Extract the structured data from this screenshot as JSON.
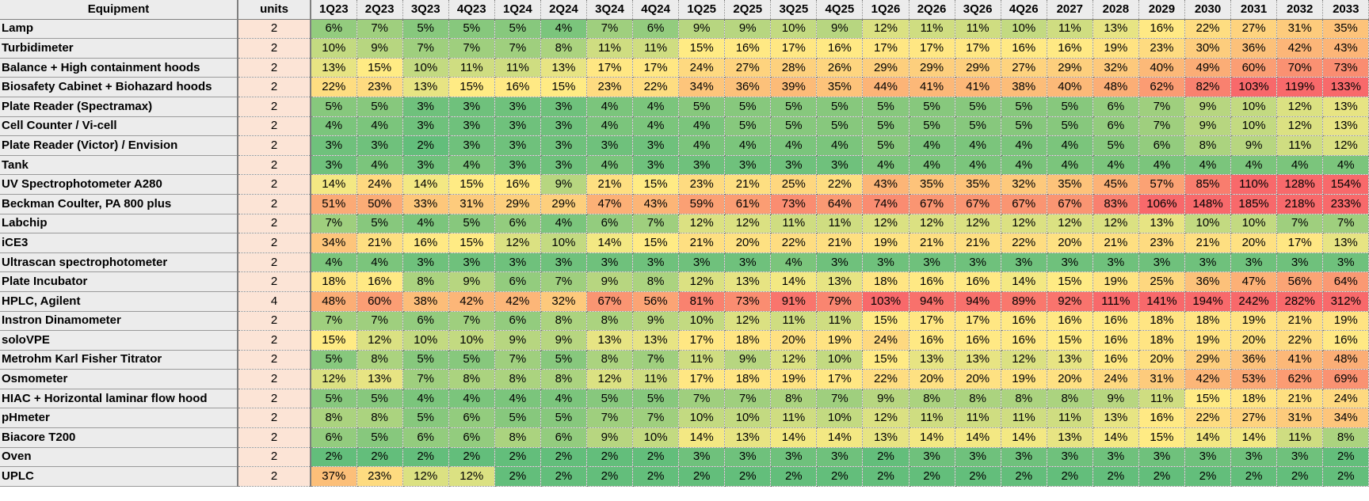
{
  "table": {
    "headers": [
      "Equipment",
      "units",
      "1Q23",
      "2Q23",
      "3Q23",
      "4Q23",
      "1Q24",
      "2Q24",
      "3Q24",
      "4Q24",
      "1Q25",
      "2Q25",
      "3Q25",
      "4Q25",
      "1Q26",
      "2Q26",
      "3Q26",
      "4Q26",
      "2027",
      "2028",
      "2029",
      "2030",
      "2031",
      "2032",
      "2033"
    ],
    "rows": [
      {
        "name": "Lamp",
        "units": "2",
        "values": [
          "6%",
          "7%",
          "5%",
          "5%",
          "5%",
          "4%",
          "7%",
          "6%",
          "9%",
          "9%",
          "10%",
          "9%",
          "12%",
          "11%",
          "11%",
          "10%",
          "11%",
          "13%",
          "16%",
          "22%",
          "27%",
          "31%",
          "35%"
        ]
      },
      {
        "name": "Turbidimeter",
        "units": "2",
        "values": [
          "10%",
          "9%",
          "7%",
          "7%",
          "7%",
          "8%",
          "11%",
          "11%",
          "15%",
          "16%",
          "17%",
          "16%",
          "17%",
          "17%",
          "17%",
          "16%",
          "16%",
          "19%",
          "23%",
          "30%",
          "36%",
          "42%",
          "43%"
        ]
      },
      {
        "name": "Balance + High containment hoods",
        "units": "2",
        "values": [
          "13%",
          "15%",
          "10%",
          "11%",
          "11%",
          "13%",
          "17%",
          "17%",
          "24%",
          "27%",
          "28%",
          "26%",
          "29%",
          "29%",
          "29%",
          "27%",
          "29%",
          "32%",
          "40%",
          "49%",
          "60%",
          "70%",
          "73%"
        ]
      },
      {
        "name": "Biosafety Cabinet + Biohazard hoods",
        "units": "2",
        "values": [
          "22%",
          "23%",
          "13%",
          "15%",
          "16%",
          "15%",
          "23%",
          "22%",
          "34%",
          "36%",
          "39%",
          "35%",
          "44%",
          "41%",
          "41%",
          "38%",
          "40%",
          "48%",
          "62%",
          "82%",
          "103%",
          "119%",
          "133%"
        ]
      },
      {
        "name": "Plate Reader (Spectramax)",
        "units": "2",
        "values": [
          "5%",
          "5%",
          "3%",
          "3%",
          "3%",
          "3%",
          "4%",
          "4%",
          "5%",
          "5%",
          "5%",
          "5%",
          "5%",
          "5%",
          "5%",
          "5%",
          "5%",
          "6%",
          "7%",
          "9%",
          "10%",
          "12%",
          "13%"
        ]
      },
      {
        "name": "Cell Counter / Vi-cell",
        "units": "2",
        "values": [
          "4%",
          "4%",
          "3%",
          "3%",
          "3%",
          "3%",
          "4%",
          "4%",
          "4%",
          "5%",
          "5%",
          "5%",
          "5%",
          "5%",
          "5%",
          "5%",
          "5%",
          "6%",
          "7%",
          "9%",
          "10%",
          "12%",
          "13%"
        ]
      },
      {
        "name": "Plate Reader (Victor) / Envision",
        "units": "2",
        "values": [
          "3%",
          "3%",
          "2%",
          "3%",
          "3%",
          "3%",
          "3%",
          "3%",
          "4%",
          "4%",
          "4%",
          "4%",
          "5%",
          "4%",
          "4%",
          "4%",
          "4%",
          "5%",
          "6%",
          "8%",
          "9%",
          "11%",
          "12%"
        ]
      },
      {
        "name": "Tank",
        "units": "2",
        "values": [
          "3%",
          "4%",
          "3%",
          "4%",
          "3%",
          "3%",
          "4%",
          "3%",
          "3%",
          "3%",
          "3%",
          "3%",
          "4%",
          "4%",
          "4%",
          "4%",
          "4%",
          "4%",
          "4%",
          "4%",
          "4%",
          "4%",
          "4%"
        ]
      },
      {
        "name": "UV Spectrophotometer A280",
        "units": "2",
        "values": [
          "14%",
          "24%",
          "14%",
          "15%",
          "16%",
          "9%",
          "21%",
          "15%",
          "23%",
          "21%",
          "25%",
          "22%",
          "43%",
          "35%",
          "35%",
          "32%",
          "35%",
          "45%",
          "57%",
          "85%",
          "110%",
          "128%",
          "154%"
        ]
      },
      {
        "name": "Beckman Coulter, PA 800 plus",
        "units": "2",
        "values": [
          "51%",
          "50%",
          "33%",
          "31%",
          "29%",
          "29%",
          "47%",
          "43%",
          "59%",
          "61%",
          "73%",
          "64%",
          "74%",
          "67%",
          "67%",
          "67%",
          "67%",
          "83%",
          "106%",
          "148%",
          "185%",
          "218%",
          "233%"
        ]
      },
      {
        "name": "Labchip",
        "units": "2",
        "values": [
          "7%",
          "5%",
          "4%",
          "5%",
          "6%",
          "4%",
          "6%",
          "7%",
          "12%",
          "12%",
          "11%",
          "11%",
          "12%",
          "12%",
          "12%",
          "12%",
          "12%",
          "12%",
          "13%",
          "10%",
          "10%",
          "7%",
          "7%"
        ]
      },
      {
        "name": "iCE3",
        "units": "2",
        "values": [
          "34%",
          "21%",
          "16%",
          "15%",
          "12%",
          "10%",
          "14%",
          "15%",
          "21%",
          "20%",
          "22%",
          "21%",
          "19%",
          "21%",
          "21%",
          "22%",
          "20%",
          "21%",
          "23%",
          "21%",
          "20%",
          "17%",
          "13%"
        ]
      },
      {
        "name": "Ultrascan spectrophotometer",
        "units": "2",
        "values": [
          "4%",
          "4%",
          "3%",
          "3%",
          "3%",
          "3%",
          "3%",
          "3%",
          "3%",
          "3%",
          "4%",
          "3%",
          "3%",
          "3%",
          "3%",
          "3%",
          "3%",
          "3%",
          "3%",
          "3%",
          "3%",
          "3%",
          "3%"
        ]
      },
      {
        "name": "Plate Incubator",
        "units": "2",
        "values": [
          "18%",
          "16%",
          "8%",
          "9%",
          "6%",
          "7%",
          "9%",
          "8%",
          "12%",
          "13%",
          "14%",
          "13%",
          "18%",
          "16%",
          "16%",
          "14%",
          "15%",
          "19%",
          "25%",
          "36%",
          "47%",
          "56%",
          "64%"
        ]
      },
      {
        "name": "HPLC, Agilent",
        "units": "4",
        "values": [
          "48%",
          "60%",
          "38%",
          "42%",
          "42%",
          "32%",
          "67%",
          "56%",
          "81%",
          "73%",
          "91%",
          "79%",
          "103%",
          "94%",
          "94%",
          "89%",
          "92%",
          "111%",
          "141%",
          "194%",
          "242%",
          "282%",
          "312%"
        ]
      },
      {
        "name": "Instron Dinamometer",
        "units": "2",
        "values": [
          "7%",
          "7%",
          "6%",
          "7%",
          "6%",
          "8%",
          "8%",
          "9%",
          "10%",
          "12%",
          "11%",
          "11%",
          "15%",
          "17%",
          "17%",
          "16%",
          "16%",
          "16%",
          "18%",
          "18%",
          "19%",
          "21%",
          "19%"
        ]
      },
      {
        "name": "soloVPE",
        "units": "2",
        "values": [
          "15%",
          "12%",
          "10%",
          "10%",
          "9%",
          "9%",
          "13%",
          "13%",
          "17%",
          "18%",
          "20%",
          "19%",
          "24%",
          "16%",
          "16%",
          "16%",
          "15%",
          "16%",
          "18%",
          "19%",
          "20%",
          "22%",
          "16%"
        ]
      },
      {
        "name": "Metrohm Karl Fisher Titrator",
        "units": "2",
        "values": [
          "5%",
          "8%",
          "5%",
          "5%",
          "7%",
          "5%",
          "8%",
          "7%",
          "11%",
          "9%",
          "12%",
          "10%",
          "15%",
          "13%",
          "13%",
          "12%",
          "13%",
          "16%",
          "20%",
          "29%",
          "36%",
          "41%",
          "48%"
        ]
      },
      {
        "name": "Osmometer",
        "units": "2",
        "values": [
          "12%",
          "13%",
          "7%",
          "8%",
          "8%",
          "8%",
          "12%",
          "11%",
          "17%",
          "18%",
          "19%",
          "17%",
          "22%",
          "20%",
          "20%",
          "19%",
          "20%",
          "24%",
          "31%",
          "42%",
          "53%",
          "62%",
          "69%"
        ]
      },
      {
        "name": "HIAC + Horizontal laminar flow hood",
        "units": "2",
        "values": [
          "5%",
          "5%",
          "4%",
          "4%",
          "4%",
          "4%",
          "5%",
          "5%",
          "7%",
          "7%",
          "8%",
          "7%",
          "9%",
          "8%",
          "8%",
          "8%",
          "8%",
          "9%",
          "11%",
          "15%",
          "18%",
          "21%",
          "24%"
        ]
      },
      {
        "name": "pHmeter",
        "units": "2",
        "values": [
          "8%",
          "8%",
          "5%",
          "6%",
          "5%",
          "5%",
          "7%",
          "7%",
          "10%",
          "10%",
          "11%",
          "10%",
          "12%",
          "11%",
          "11%",
          "11%",
          "11%",
          "13%",
          "16%",
          "22%",
          "27%",
          "31%",
          "34%"
        ]
      },
      {
        "name": "Biacore T200",
        "units": "2",
        "values": [
          "6%",
          "5%",
          "6%",
          "6%",
          "8%",
          "6%",
          "9%",
          "10%",
          "14%",
          "13%",
          "14%",
          "14%",
          "13%",
          "14%",
          "14%",
          "14%",
          "13%",
          "14%",
          "15%",
          "14%",
          "14%",
          "11%",
          "8%"
        ]
      },
      {
        "name": "Oven",
        "units": "2",
        "values": [
          "2%",
          "2%",
          "2%",
          "2%",
          "2%",
          "2%",
          "2%",
          "2%",
          "3%",
          "3%",
          "3%",
          "3%",
          "2%",
          "3%",
          "3%",
          "3%",
          "3%",
          "3%",
          "3%",
          "3%",
          "3%",
          "3%",
          "2%"
        ]
      },
      {
        "name": "UPLC",
        "units": "2",
        "values": [
          "37%",
          "23%",
          "12%",
          "12%",
          "2%",
          "2%",
          "2%",
          "2%",
          "2%",
          "2%",
          "2%",
          "2%",
          "2%",
          "2%",
          "2%",
          "2%",
          "2%",
          "2%",
          "2%",
          "2%",
          "2%",
          "2%",
          "2%"
        ]
      }
    ],
    "scale_colors": {
      "low": "#63be7b",
      "mid": "#ffeb84",
      "high": "#f8696b",
      "header_bg": "#ececec",
      "units_bg": "#fce4d6"
    }
  }
}
